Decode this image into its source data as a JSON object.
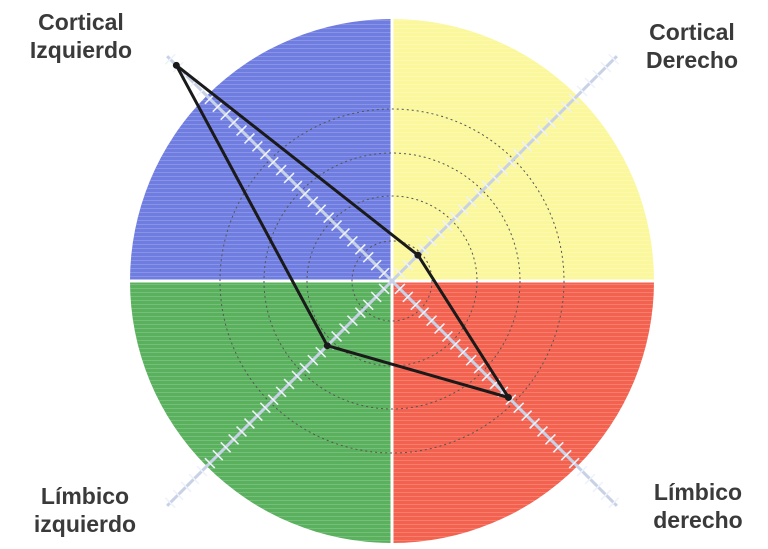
{
  "labels": {
    "top_left": {
      "line1": "Cortical",
      "line2": "Izquierdo"
    },
    "top_right": {
      "line1": "Cortical",
      "line2": "Derecho"
    },
    "bottom_left": {
      "line1": "Límbico",
      "line2": "izquierdo"
    },
    "bottom_right": {
      "line1": "Límbico",
      "line2": "derecho"
    }
  },
  "colors": {
    "top_left": "#6f7ce0",
    "top_right": "#fbf79c",
    "bottom_left": "#59b05d",
    "bottom_right": "#f3614f",
    "profile_line": "#1a1a1a",
    "axis": "#c8d2e6"
  },
  "profile_scores": {
    "cortical_izquierdo": 1.0,
    "cortical_derecho": 0.12,
    "limbico_derecho": 0.54,
    "limbico_izquierdo": 0.3
  }
}
